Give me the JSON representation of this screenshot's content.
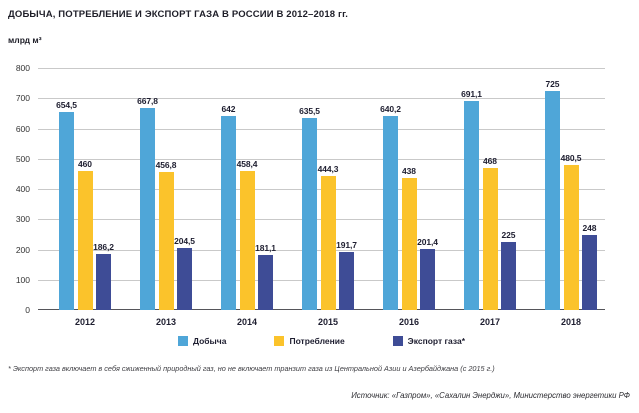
{
  "chart_data": {
    "type": "bar",
    "title": "ДОБЫЧА, ПОТРЕБЛЕНИЕ И ЭКСПОРТ ГАЗА В РОССИИ В 2012–2018 гг.",
    "ylabel": "млрд м³",
    "xlabel": "",
    "ylim": [
      0,
      800
    ],
    "ytick_step": 100,
    "grid": true,
    "legend_position": "bottom",
    "categories": [
      "2012",
      "2013",
      "2014",
      "2015",
      "2016",
      "2017",
      "2018"
    ],
    "series": [
      {
        "key": "production",
        "name": "Добыча",
        "color": "#4FA6D8",
        "values": [
          654.5,
          667.8,
          642,
          635.5,
          640.2,
          691.1,
          725
        ],
        "labels": [
          "654,5",
          "667,8",
          "642",
          "635,5",
          "640,2",
          "691,1",
          "725"
        ]
      },
      {
        "key": "consumption",
        "name": "Потребление",
        "color": "#FBC32B",
        "values": [
          460,
          456.8,
          458.4,
          444.3,
          438,
          468,
          480.5
        ],
        "labels": [
          "460",
          "456,8",
          "458,4",
          "444,3",
          "438",
          "468",
          "480,5"
        ]
      },
      {
        "key": "export",
        "name": "Экспорт газа*",
        "color": "#3E4C96",
        "values": [
          186.2,
          204.5,
          181.1,
          191.7,
          201.4,
          225,
          248
        ],
        "labels": [
          "186,2",
          "204,5",
          "181,1",
          "191,7",
          "201,4",
          "225",
          "248"
        ]
      }
    ]
  },
  "footnote": "* Экспорт газа включает в себя сжиженный природный газ, но не включает транзит газа из Центральной Азии и Азербайджана (с 2015 г.)",
  "source": "Источник: «Газпром», «Сахалин Энерджи», Министерство энергетики РФ"
}
